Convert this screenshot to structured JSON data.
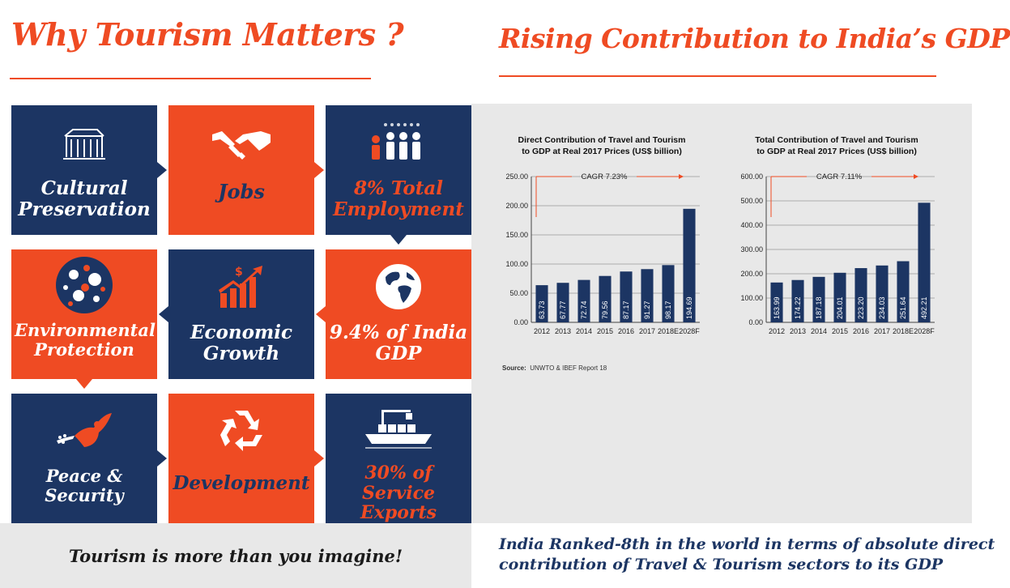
{
  "headings": {
    "left_title": "Why Tourism Matters ?",
    "right_title": "Rising Contribution to India’s GDP"
  },
  "tiles": [
    {
      "id": "cultural",
      "line1": "Cultural",
      "line2": "Preservation",
      "icon": "ruins-icon"
    },
    {
      "id": "jobs",
      "line1": "Jobs",
      "line2": "",
      "icon": "handshake-icon"
    },
    {
      "id": "employment",
      "line1": "8% Total",
      "line2": "Employment",
      "icon": "people-group-icon"
    },
    {
      "id": "environment",
      "line1": "Environmental",
      "line2": "Protection",
      "icon": "nature-globe-icon"
    },
    {
      "id": "economic",
      "line1": "Economic",
      "line2": "Growth",
      "icon": "growth-chart-icon"
    },
    {
      "id": "gdp",
      "line1": "9.4% of India",
      "line2": "GDP",
      "icon": "globe-icon"
    },
    {
      "id": "peace",
      "line1": "Peace &",
      "line2": "Security",
      "icon": "dove-icon"
    },
    {
      "id": "development",
      "line1": "Development",
      "line2": "",
      "icon": "recycle-icon"
    },
    {
      "id": "exports",
      "line1": "30% of",
      "line2": "Service Exports",
      "icon": "cargo-ship-icon"
    }
  ],
  "tagline": "Tourism is more than you imagine!",
  "ranking": {
    "line1": "India Ranked-8th in the world in terms of absolute direct",
    "line2": "contribution of Travel & Tourism sectors to its GDP"
  },
  "source": {
    "label": "Source:",
    "text": "UNWTO & IBEF Report 18"
  },
  "colors": {
    "orange": "#ef4b23",
    "navy": "#1c3563",
    "panel": "#e8e8e8"
  },
  "chart_data": [
    {
      "type": "bar",
      "title_line1": "Direct Contribution of Travel and Tourism",
      "title_line2": "to GDP at Real 2017 Prices (US$ billion)",
      "categories": [
        "2012",
        "2013",
        "2014",
        "2015",
        "2016",
        "2017",
        "2018E",
        "2028F"
      ],
      "values": [
        63.73,
        67.77,
        72.74,
        79.56,
        87.17,
        91.27,
        98.17,
        194.69
      ],
      "value_labels": [
        "63.73",
        "67.77",
        "72.74",
        "79.56",
        "87.17",
        "91.27",
        "98.17",
        "194.69"
      ],
      "yticks": [
        "0.00",
        "50.00",
        "100.00",
        "150.00",
        "200.00",
        "250.00"
      ],
      "ylim": [
        0,
        250
      ],
      "annotation": "CAGR 7.23%",
      "bar_color": "#1c3563",
      "grid": true
    },
    {
      "type": "bar",
      "title_line1": "Total Contribution of Travel and Tourism",
      "title_line2": "to GDP at Real 2017 Prices (US$ billion)",
      "categories": [
        "2012",
        "2013",
        "2014",
        "2015",
        "2016",
        "2017",
        "2018E",
        "2028F"
      ],
      "values": [
        163.99,
        174.22,
        187.18,
        204.01,
        223.2,
        234.03,
        251.64,
        492.21
      ],
      "value_labels": [
        "163.99",
        "174.22",
        "187.18",
        "204.01",
        "223.20",
        "234.03",
        "251.64",
        "492.21"
      ],
      "yticks": [
        "0.00",
        "100.00",
        "200.00",
        "300.00",
        "400.00",
        "500.00",
        "600.00"
      ],
      "ylim": [
        0,
        600
      ],
      "annotation": "CAGR 7.11%",
      "bar_color": "#1c3563",
      "grid": true
    }
  ]
}
